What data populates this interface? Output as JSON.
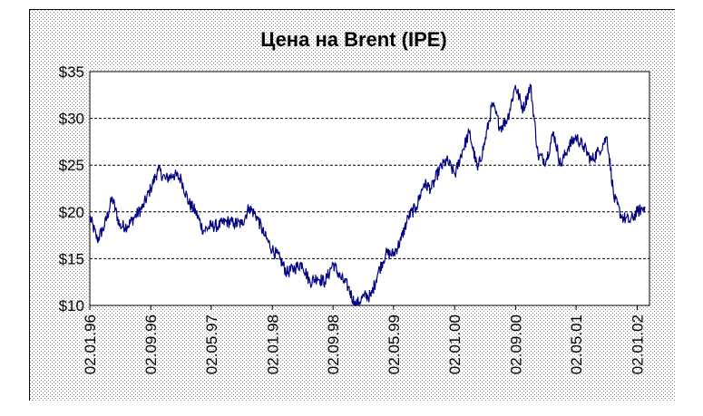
{
  "chart_data": {
    "type": "line",
    "title": "Цена на Brent (IPE)",
    "xlabel": "",
    "ylabel": "",
    "ylim": [
      10,
      35
    ],
    "y_ticks": [
      10,
      15,
      20,
      25,
      30,
      35
    ],
    "y_tick_labels": [
      "$10",
      "$15",
      "$20",
      "$25",
      "$30",
      "$35"
    ],
    "x_tick_labels": [
      "02.01.96",
      "02.09.96",
      "02.05.97",
      "02.01.98",
      "02.09.98",
      "02.05.99",
      "02.01.00",
      "02.09.00",
      "02.05.01",
      "02.01.02"
    ],
    "gridlines": "horizontal dashed",
    "legend": "none",
    "line_color": "#000080",
    "series": [
      {
        "x": [
          "1996-01-02",
          "1996-02-01",
          "1996-03-01",
          "1996-04-01",
          "1996-05-01",
          "1996-06-01",
          "1996-07-01",
          "1996-08-01",
          "1996-09-02",
          "1996-10-01",
          "1996-11-01",
          "1996-12-01",
          "1997-01-02",
          "1997-02-01",
          "1997-03-01",
          "1997-04-01",
          "1997-05-02",
          "1997-06-01",
          "1997-07-01",
          "1997-08-01",
          "1997-09-01",
          "1997-10-01",
          "1997-11-01",
          "1997-12-01",
          "1998-01-02",
          "1998-02-01",
          "1998-03-01",
          "1998-04-01",
          "1998-05-01",
          "1998-06-01",
          "1998-07-01",
          "1998-08-01",
          "1998-09-02",
          "1998-10-01",
          "1998-11-01",
          "1998-12-01",
          "1999-01-04",
          "1999-02-01",
          "1999-03-01",
          "1999-04-01",
          "1999-05-03",
          "1999-06-01",
          "1999-07-01",
          "1999-08-01",
          "1999-09-01",
          "1999-10-01",
          "1999-11-01",
          "1999-12-01",
          "2000-01-04",
          "2000-02-01",
          "2000-03-01",
          "2000-04-03",
          "2000-05-02",
          "2000-06-01",
          "2000-07-03",
          "2000-08-01",
          "2000-09-01",
          "2000-10-02",
          "2000-11-01",
          "2000-12-01",
          "2001-01-02",
          "2001-02-01",
          "2001-03-01",
          "2001-04-02",
          "2001-05-02",
          "2001-06-01",
          "2001-07-02",
          "2001-08-01",
          "2001-09-03",
          "2001-10-01",
          "2001-11-01",
          "2001-12-03",
          "2002-01-02",
          "2002-02-01"
        ],
        "values": [
          19.5,
          17.0,
          18.5,
          21.5,
          18.5,
          18.5,
          19.5,
          20.5,
          22.5,
          24.5,
          23.5,
          24.0,
          23.5,
          21.0,
          20.0,
          18.0,
          18.5,
          18.5,
          19.0,
          18.8,
          18.7,
          20.5,
          19.5,
          17.5,
          16.0,
          15.0,
          13.5,
          14.0,
          14.5,
          12.5,
          13.0,
          12.5,
          14.5,
          13.0,
          12.0,
          10.0,
          11.0,
          11.0,
          13.5,
          15.5,
          15.5,
          17.0,
          19.5,
          20.5,
          23.0,
          22.5,
          24.5,
          25.5,
          24.0,
          26.5,
          28.5,
          24.5,
          27.5,
          31.5,
          29.0,
          30.0,
          33.5,
          31.0,
          33.5,
          26.0,
          25.5,
          28.5,
          25.0,
          27.0,
          28.0,
          27.0,
          25.5,
          26.5,
          28.0,
          21.5,
          19.5,
          19.0,
          20.0,
          20.5
        ]
      }
    ]
  }
}
